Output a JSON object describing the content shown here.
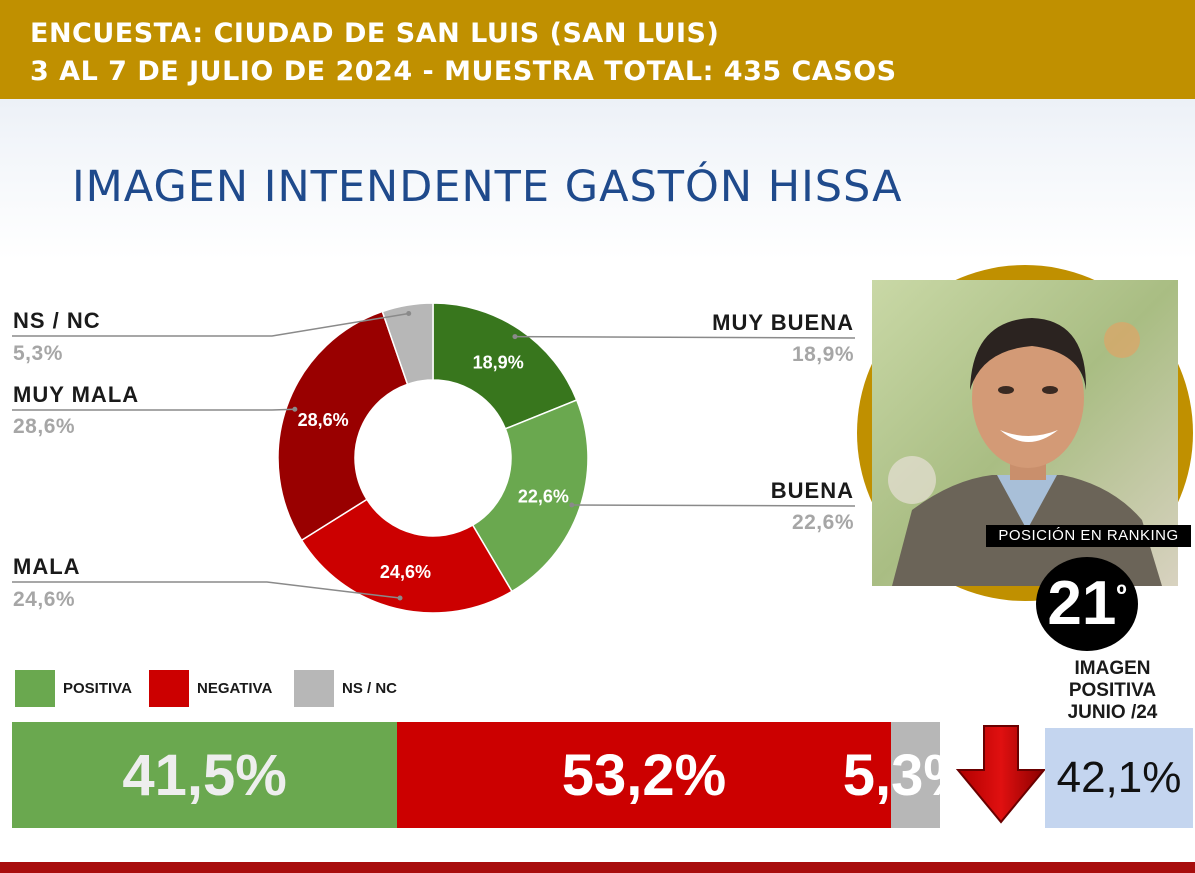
{
  "header": {
    "line1": "ENCUESTA: CIUDAD DE SAN LUIS (SAN LUIS)",
    "line2": "3 AL 7 DE JULIO DE 2024 - MUESTRA TOTAL: 435 CASOS"
  },
  "title": "IMAGEN INTENDENTE  GASTÓN HISSA",
  "colors": {
    "header": "#c09000",
    "title": "#1f4a8c",
    "muy_buena": "#38761d",
    "buena": "#6aa84f",
    "mala": "#cc0000",
    "muy_mala": "#990000",
    "ns_nc": "#b7b7b7",
    "positiva": "#6aa84f",
    "negativa": "#cc0000"
  },
  "chart_data": [
    {
      "type": "pie",
      "variant": "donut",
      "slices": [
        {
          "name": "MUY BUENA",
          "value": 18.9,
          "label": "18,9%",
          "value_text": "18,9%",
          "color": "#38761d"
        },
        {
          "name": "BUENA",
          "value": 22.6,
          "label": "22,6%",
          "value_text": "22,6%",
          "color": "#6aa84f"
        },
        {
          "name": "MALA",
          "value": 24.6,
          "label": "24,6%",
          "value_text": "24,6%",
          "color": "#cc0000"
        },
        {
          "name": "MUY MALA",
          "value": 28.6,
          "label": "28,6%",
          "value_text": "28,6%",
          "color": "#990000"
        },
        {
          "name": "NS / NC",
          "value": 5.3,
          "label": "",
          "value_text": "5,3%",
          "color": "#b7b7b7"
        }
      ]
    },
    {
      "type": "bar",
      "orientation": "horizontal",
      "stacked": true,
      "legend": {
        "placement": "top-left",
        "items": [
          {
            "label": "POSITIVA",
            "color": "#6aa84f"
          },
          {
            "label": "NEGATIVA",
            "color": "#cc0000"
          },
          {
            "label": "NS / NC",
            "color": "#b7b7b7"
          }
        ]
      },
      "series": [
        {
          "name": "POSITIVA",
          "value": 41.5,
          "label": "41,5%"
        },
        {
          "name": "NEGATIVA",
          "value": 53.2,
          "label": "53,2%"
        },
        {
          "name": "NS / NC",
          "value": 5.3,
          "label": "5,3%"
        }
      ]
    }
  ],
  "ranking": {
    "caption": "POSICIÓN EN RANKING",
    "position": "21",
    "suffix": "º"
  },
  "previous": {
    "label_lines": [
      "IMAGEN",
      "POSITIVA",
      "JUNIO /24"
    ],
    "value": "42,1%",
    "trend": "down"
  },
  "photo": {
    "icon": "person-portrait"
  }
}
